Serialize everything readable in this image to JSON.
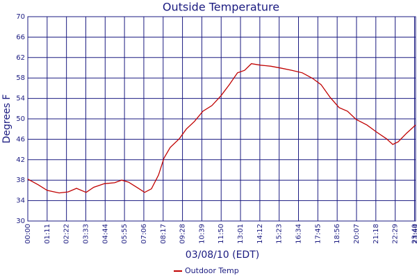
{
  "chart_data": {
    "type": "line",
    "title": "Outside Temperature",
    "y_label": "Degrees F",
    "x_label": "03/08/10 (EDT)",
    "x": [
      0,
      38,
      71,
      115,
      148,
      179,
      214,
      242,
      281,
      319,
      345,
      370,
      403,
      429,
      454,
      480,
      500,
      523,
      556,
      582,
      612,
      643,
      676,
      709,
      740,
      770,
      796,
      821,
      855,
      893,
      932,
      970,
      1008,
      1046,
      1077,
      1110,
      1143,
      1174,
      1205,
      1245,
      1281,
      1317,
      1340,
      1360,
      1391,
      1424
    ],
    "series": [
      {
        "name": "Outdoor Temp",
        "color": "#c00000",
        "values": [
          38.2,
          37.1,
          36.0,
          35.5,
          35.7,
          36.4,
          35.6,
          36.6,
          37.3,
          37.5,
          38.0,
          37.6,
          36.5,
          35.6,
          36.3,
          39.0,
          42.3,
          44.4,
          46.1,
          48.0,
          49.5,
          51.5,
          52.6,
          54.5,
          56.7,
          59.0,
          59.5,
          60.8,
          60.5,
          60.3,
          59.9,
          59.5,
          59.0,
          57.9,
          56.7,
          54.2,
          52.2,
          51.5,
          49.9,
          48.8,
          47.4,
          46.1,
          45.0,
          45.5,
          47.2,
          48.8
        ]
      }
    ],
    "xlim": [
      0,
      1424
    ],
    "xticks": [
      {
        "value": 0,
        "label": "00:00"
      },
      {
        "value": 71,
        "label": "01:11"
      },
      {
        "value": 142,
        "label": "02:22"
      },
      {
        "value": 213,
        "label": "03:33"
      },
      {
        "value": 284,
        "label": "04:44"
      },
      {
        "value": 355,
        "label": "05:55"
      },
      {
        "value": 426,
        "label": "07:06"
      },
      {
        "value": 497,
        "label": "08:17"
      },
      {
        "value": 568,
        "label": "09:28"
      },
      {
        "value": 639,
        "label": "10:39"
      },
      {
        "value": 710,
        "label": "11:50"
      },
      {
        "value": 781,
        "label": "13:01"
      },
      {
        "value": 852,
        "label": "14:12"
      },
      {
        "value": 923,
        "label": "15:23"
      },
      {
        "value": 994,
        "label": "16:34"
      },
      {
        "value": 1065,
        "label": "17:45"
      },
      {
        "value": 1136,
        "label": "18:56"
      },
      {
        "value": 1207,
        "label": "20:07"
      },
      {
        "value": 1278,
        "label": "21:18"
      },
      {
        "value": 1349,
        "label": "22:29"
      },
      {
        "value": 1420,
        "label": "23:40"
      },
      {
        "value": 1424,
        "label": "23:44"
      }
    ],
    "ylim": [
      30,
      70
    ],
    "yticks": [
      30,
      34,
      38,
      42,
      46,
      50,
      54,
      58,
      62,
      66,
      70
    ],
    "grid": true,
    "legend": "bottom"
  }
}
